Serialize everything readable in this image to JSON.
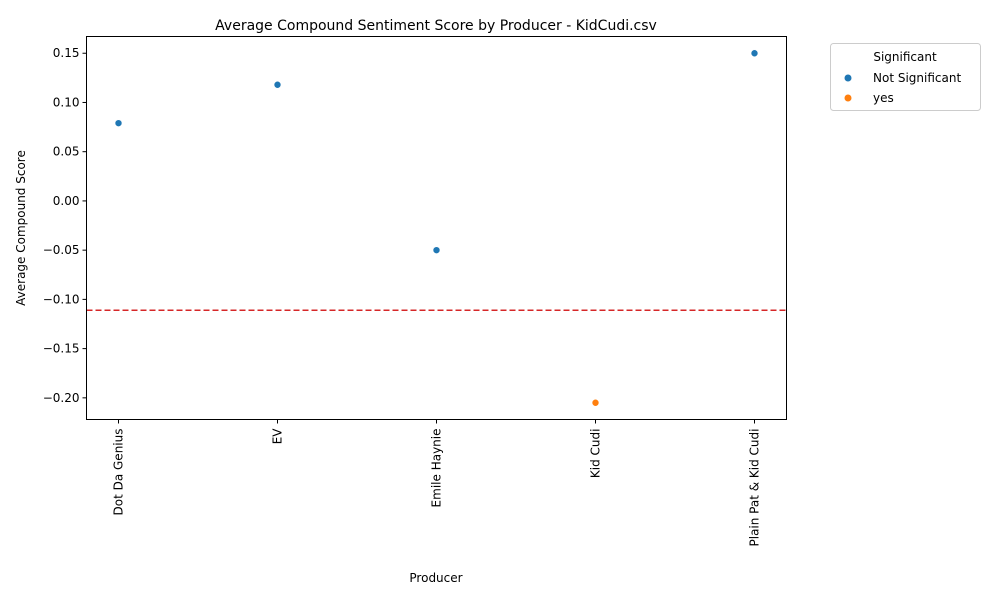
{
  "chart_data": {
    "type": "scatter",
    "title": "Average Compound Sentiment Score by Producer - KidCudi.csv",
    "xlabel": "Producer",
    "ylabel": "Average Compound Score",
    "categories": [
      "Dot Da Genius",
      "EV",
      "Emile Haynie",
      "Kid Cudi",
      "Plain Pat & Kid Cudi"
    ],
    "values": [
      0.079,
      0.118,
      -0.05,
      -0.205,
      0.15
    ],
    "significance": [
      "Not Significant",
      "Not Significant",
      "Not Significant",
      "yes",
      "Not Significant"
    ],
    "ylim": [
      -0.222,
      0.167
    ],
    "yticks": [
      -0.2,
      -0.15,
      -0.1,
      -0.05,
      0.0,
      0.05,
      0.1,
      0.15
    ],
    "ytick_labels": [
      "−0.20",
      "−0.15",
      "−0.10",
      "−0.05",
      "0.00",
      "0.05",
      "0.10",
      "0.15"
    ],
    "reference_line": {
      "y": -0.111,
      "color": "#d62728",
      "style": "dashed"
    },
    "legend": {
      "title": "Significant",
      "placement": "outside top-right",
      "entries": [
        {
          "label": "Not Significant",
          "color": "#1f77b4"
        },
        {
          "label": "yes",
          "color": "#ff7f0e"
        }
      ]
    },
    "grid": false,
    "x_tick_rotation": "vertical"
  }
}
